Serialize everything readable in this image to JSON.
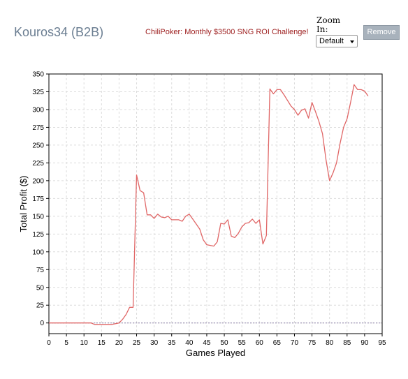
{
  "header": {
    "player_name": "Kouros34 (B2B)",
    "challenge_title": "ChiliPoker: Monthly $3500 SNG ROI Challenge!"
  },
  "zoom": {
    "label": "Zoom In:",
    "selected": "Default"
  },
  "remove_button": {
    "label": "Remove"
  },
  "colors": {
    "line": "#e06666",
    "grid": "#dcdcdc",
    "zero_line": "#8a7fa8",
    "remove_bg": "#a8b2bc"
  },
  "chart_data": {
    "type": "line",
    "title": "",
    "xlabel": "Games Played",
    "ylabel": "Total Profit ($)",
    "xlim": [
      0,
      95
    ],
    "ylim": [
      -15,
      350
    ],
    "xticks": [
      0,
      5,
      10,
      15,
      20,
      25,
      30,
      35,
      40,
      45,
      50,
      55,
      60,
      65,
      70,
      75,
      80,
      85,
      90,
      95
    ],
    "yticks": [
      0,
      25,
      50,
      75,
      100,
      125,
      150,
      175,
      200,
      225,
      250,
      275,
      300,
      325,
      350
    ],
    "grid": true,
    "series": [
      {
        "x": [
          0,
          12,
          13,
          18,
          19,
          20,
          21,
          22,
          23,
          24,
          25,
          26,
          27,
          28,
          29,
          30,
          31,
          32,
          33,
          34,
          35,
          36,
          37,
          38,
          39,
          40,
          41,
          42,
          43,
          44,
          45,
          46,
          47,
          48,
          49,
          50,
          51,
          52,
          53,
          54,
          55,
          56,
          57,
          58,
          59,
          60,
          61,
          62,
          63,
          64,
          65,
          66,
          67,
          68,
          69,
          70,
          71,
          72,
          73,
          74,
          75,
          76,
          77,
          78,
          79,
          80,
          81,
          82,
          83,
          84,
          85,
          86,
          87,
          88,
          89,
          90,
          91
        ],
        "y": [
          0,
          0,
          -2,
          -2,
          -1,
          0,
          5,
          12,
          22,
          22,
          208,
          186,
          183,
          152,
          152,
          147,
          153,
          149,
          148,
          150,
          145,
          145,
          145,
          143,
          150,
          153,
          146,
          139,
          132,
          117,
          110,
          109,
          108,
          114,
          140,
          139,
          145,
          122,
          120,
          126,
          135,
          140,
          141,
          146,
          140,
          145,
          111,
          123,
          329,
          322,
          328,
          328,
          321,
          313,
          305,
          300,
          292,
          299,
          301,
          288,
          310,
          297,
          283,
          266,
          229,
          200,
          211,
          225,
          252,
          275,
          287,
          310,
          335,
          328,
          328,
          326,
          319
        ]
      }
    ]
  }
}
